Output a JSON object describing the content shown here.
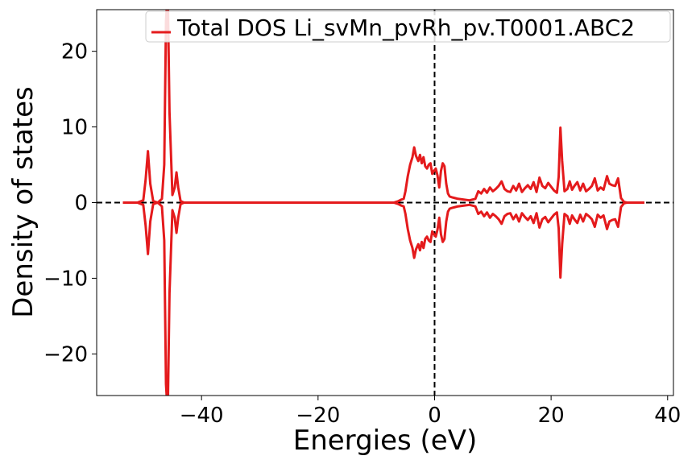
{
  "chart_data": {
    "type": "line",
    "title": "",
    "xlabel": "Energies (eV)",
    "ylabel": "Density of states",
    "xlim": [
      -58,
      41
    ],
    "ylim": [
      -25.5,
      25.5
    ],
    "xticks": [
      -40,
      -20,
      0,
      20,
      40
    ],
    "xtick_labels": [
      "−40",
      "−20",
      "0",
      "20",
      "40"
    ],
    "yticks": [
      -20,
      -10,
      0,
      10,
      20
    ],
    "ytick_labels": [
      "−20",
      "−10",
      "0",
      "10",
      "20"
    ],
    "grid": false,
    "legend_position": "top-right",
    "reference_lines": {
      "x": 0,
      "y": 0,
      "style": "dashed",
      "color": "#000000"
    },
    "series": [
      {
        "name": "Total DOS Li_svMn_pvRh_pv.T0001.ABC2",
        "color": "#e41a1c",
        "mirrored": true,
        "x": [
          -53.5,
          -51,
          -50,
          -49.6,
          -49.2,
          -48.8,
          -48.3,
          -47.5,
          -46.8,
          -46.4,
          -46.1,
          -45.8,
          -45.5,
          -45,
          -44.6,
          -44.3,
          -44,
          -43.6,
          -43,
          -40,
          -30,
          -20,
          -10,
          -7,
          -6.2,
          -5.7,
          -5.3,
          -5,
          -4.6,
          -4.2,
          -3.8,
          -3.5,
          -3.2,
          -2.8,
          -2.5,
          -2.2,
          -1.9,
          -1.6,
          -1.3,
          -1,
          -0.7,
          -0.4,
          -0.1,
          0.2,
          0.5,
          0.8,
          1.1,
          1.4,
          1.7,
          2,
          2.3,
          2.6,
          3,
          3.5,
          4,
          5,
          6,
          7,
          7.5,
          8,
          8.5,
          9,
          9.5,
          10,
          10.5,
          11,
          11.5,
          12,
          12.5,
          13,
          13.5,
          14,
          14.5,
          15,
          15.5,
          16,
          16.5,
          17,
          17.5,
          18,
          18.5,
          19,
          19.5,
          20,
          20.5,
          21,
          21.3,
          21.6,
          21.9,
          22.3,
          22.8,
          23.2,
          23.6,
          24,
          24.5,
          25,
          25.5,
          26,
          26.5,
          27,
          27.5,
          28,
          28.5,
          29,
          29.3,
          29.6,
          30,
          30.5,
          31,
          31.5,
          32,
          32.5,
          33,
          34,
          35,
          36
        ],
        "values": [
          0,
          0,
          0.3,
          3,
          6.8,
          2.5,
          0.2,
          0,
          0.5,
          5,
          24,
          28,
          12,
          1,
          2,
          4,
          2,
          0.2,
          0,
          0,
          0,
          0,
          0,
          0,
          0.2,
          0.4,
          0.5,
          1.5,
          3.5,
          5,
          6,
          7.3,
          6.2,
          5.5,
          6.3,
          5.2,
          6,
          4.8,
          4.5,
          5,
          5.2,
          3.8,
          4.2,
          4.5,
          3.6,
          2,
          4.2,
          5.2,
          4.8,
          2.5,
          1.2,
          0.8,
          0.7,
          0.6,
          0.5,
          0.4,
          0.3,
          0.5,
          1.5,
          1.2,
          1.8,
          1.3,
          2,
          1.5,
          1.8,
          2.2,
          2.8,
          1.8,
          1.5,
          1.4,
          2.2,
          1.6,
          2.5,
          1.4,
          1.9,
          2.3,
          1.8,
          2.7,
          1.4,
          3.3,
          2.2,
          1.9,
          2.6,
          2.1,
          1.6,
          1.3,
          3.4,
          9.9,
          5.5,
          1.5,
          1.8,
          2.8,
          1.7,
          2.2,
          2.7,
          1.6,
          2.5,
          1.5,
          1.8,
          2.2,
          3.2,
          1.6,
          2,
          1.7,
          2.6,
          3.5,
          2.5,
          2.3,
          2.2,
          3.2,
          0.6,
          0.1,
          0,
          0,
          0,
          0
        ]
      }
    ]
  }
}
